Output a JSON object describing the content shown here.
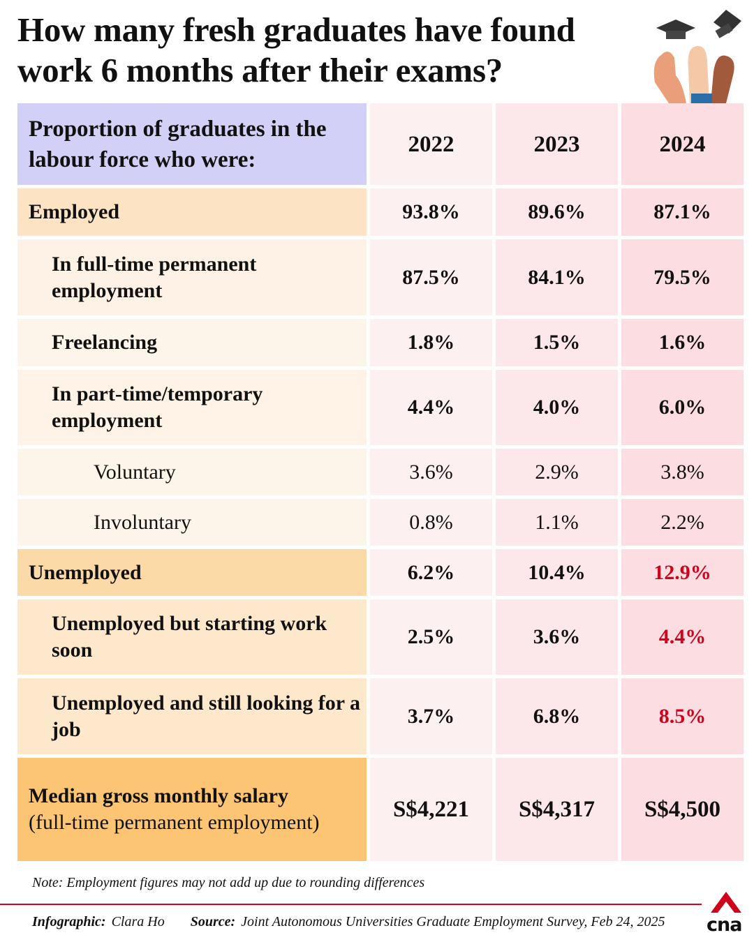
{
  "header": {
    "title": "How many fresh graduates have found work 6 months after their exams?"
  },
  "table": {
    "header": {
      "label": "Proportion of graduates in the labour force who were:",
      "years": [
        "2022",
        "2023",
        "2024"
      ]
    },
    "rows": [
      {
        "label": "Employed",
        "values": [
          "93.8%",
          "89.6%",
          "87.1%"
        ]
      },
      {
        "label": "In full-time permanent employment",
        "values": [
          "87.5%",
          "84.1%",
          "79.5%"
        ]
      },
      {
        "label": "Freelancing",
        "values": [
          "1.8%",
          "1.5%",
          "1.6%"
        ]
      },
      {
        "label": "In part-time/temporary employment",
        "values": [
          "4.4%",
          "4.0%",
          "6.0%"
        ]
      },
      {
        "label": "Voluntary",
        "values": [
          "3.6%",
          "2.9%",
          "3.8%"
        ]
      },
      {
        "label": "Involuntary",
        "values": [
          "0.8%",
          "1.1%",
          "2.2%"
        ]
      },
      {
        "label": "Unemployed",
        "values": [
          "6.2%",
          "10.4%",
          "12.9%"
        ]
      },
      {
        "label": "Unemployed but starting work soon",
        "values": [
          "2.5%",
          "3.6%",
          "4.4%"
        ]
      },
      {
        "label": "Unemployed and still looking for a job",
        "values": [
          "3.7%",
          "6.8%",
          "8.5%"
        ]
      },
      {
        "label": "Median gross monthly salary",
        "sublabel": "(full-time permanent employment)",
        "values": [
          "S$4,221",
          "S$4,317",
          "S$4,500"
        ]
      }
    ]
  },
  "note": "Note: Employment figures may not add up due to rounding differences",
  "footer": {
    "credit_label": "Infographic:",
    "credit": "Clara Ho",
    "source_label": "Source:",
    "source": "Joint Autonomous Universities Graduate Employment Survey, Feb 24, 2025",
    "logo": "cna"
  }
}
